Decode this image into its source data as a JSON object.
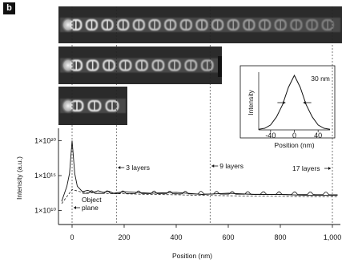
{
  "panel_label": "b",
  "chart_data": [
    {
      "type": "line",
      "xlabel": "Position (nm)",
      "ylabel": "Intensity (a.u.)",
      "x_ticks": [
        "0",
        "200",
        "400",
        "600",
        "800",
        "1,000"
      ],
      "y_ticks": [
        "1×10²⁰",
        "1×10¹⁵",
        "1×10¹⁰"
      ],
      "xlim": [
        -50,
        1020
      ],
      "y_log": true,
      "ylim": [
        100000000.0,
        1e+22
      ],
      "grid": false,
      "annotations": [
        {
          "text": "3 layers",
          "x": 170
        },
        {
          "text": "9 layers",
          "x": 530
        },
        {
          "text": "17 layers",
          "x": 1000
        },
        {
          "text": "Object",
          "x": 0
        },
        {
          "text": "plane",
          "x": 0
        }
      ],
      "markers": [
        0,
        170,
        530,
        1000
      ],
      "series": [
        {
          "description": "solid",
          "x": [
            -40,
            -20,
            -10,
            0,
            10,
            20,
            40,
            60,
            80,
            100,
            120,
            140,
            160,
            200,
            300,
            400,
            500,
            600,
            700,
            800,
            900,
            1000,
            1020
          ],
          "y": [
            200000000000.0,
            30000000000000.0,
            2000000000000000.0,
            1e+20,
            2000000000000000.0,
            30000000000000.0,
            5000000000000.0,
            8000000000000.0,
            4000000000000.0,
            7000000000000.0,
            4000000000000.0,
            6000000000000.0,
            3000000000000.0,
            5000000000000.0,
            3000000000000.0,
            4000000000000.0,
            2000000000000.0,
            3000000000000.0,
            2000000000000.0,
            2000000000000.0,
            1500000000000.0,
            1500000000000.0,
            1500000000000.0
          ]
        },
        {
          "description": "dashed",
          "x": [
            -40,
            0,
            40,
            100,
            200,
            300,
            400,
            500,
            600,
            700,
            800,
            900,
            1000,
            1020
          ],
          "y": [
            100000000000.0,
            10000000000000.0,
            4000000000000.0,
            3000000000000.0,
            2500000000000.0,
            2000000000000.0,
            1800000000000.0,
            1500000000000.0,
            1300000000000.0,
            1200000000000.0,
            1100000000000.0,
            1000000000000.0,
            1000000000000.0,
            1000000000000.0
          ]
        }
      ]
    },
    {
      "type": "line",
      "xlabel": "Position (nm)",
      "ylabel": "Intensity",
      "x_ticks": [
        "-40",
        "0",
        "40"
      ],
      "xlim": [
        -60,
        60
      ],
      "annotations": [
        {
          "text": "30 nm"
        }
      ],
      "series": [
        {
          "x": [
            -60,
            -50,
            -40,
            -30,
            -20,
            -10,
            0,
            10,
            20,
            30,
            40,
            50,
            60
          ],
          "y": [
            0.01,
            0.03,
            0.09,
            0.24,
            0.46,
            0.78,
            1.0,
            0.78,
            0.46,
            0.24,
            0.09,
            0.03,
            0.01
          ]
        }
      ]
    }
  ],
  "strips": [
    {
      "name": "17 layers",
      "count": 17
    },
    {
      "name": "9 layers",
      "count": 9
    },
    {
      "name": "3 layers",
      "count": 3
    }
  ]
}
